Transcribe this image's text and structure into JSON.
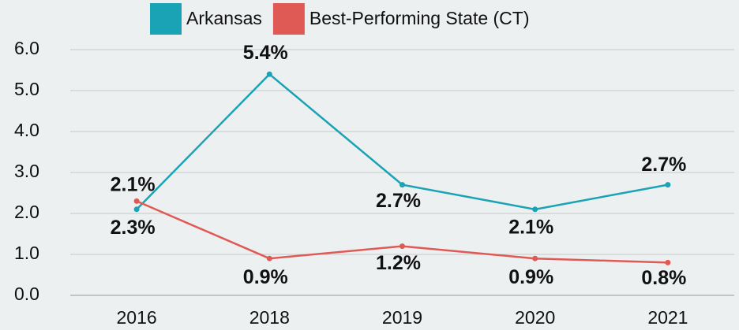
{
  "chart_data": {
    "type": "line",
    "categories": [
      "2016",
      "2018",
      "2019",
      "2020",
      "2021"
    ],
    "series": [
      {
        "name": "Arkansas",
        "color": "#1aa3b4",
        "values": [
          2.1,
          5.4,
          2.7,
          2.1,
          2.7
        ],
        "value_labels": [
          "2.1%",
          "5.4%",
          "2.7%",
          "2.1%",
          "2.7%"
        ]
      },
      {
        "name": "Best-Performing State (CT)",
        "color": "#e05a55",
        "values": [
          2.3,
          0.9,
          1.2,
          0.9,
          0.8
        ],
        "value_labels": [
          "2.3%",
          "0.9%",
          "1.2%",
          "0.9%",
          "0.8%"
        ]
      }
    ],
    "ylim": [
      0,
      6
    ],
    "yticks": [
      {
        "value": 0,
        "label": "0.0"
      },
      {
        "value": 1,
        "label": "1.0"
      },
      {
        "value": 2,
        "label": "2.0"
      },
      {
        "value": 3,
        "label": "3.0"
      },
      {
        "value": 4,
        "label": "4.0"
      },
      {
        "value": 5,
        "label": "5.0"
      },
      {
        "value": 6,
        "label": "6.0"
      }
    ],
    "grid": true,
    "legend": "top"
  }
}
